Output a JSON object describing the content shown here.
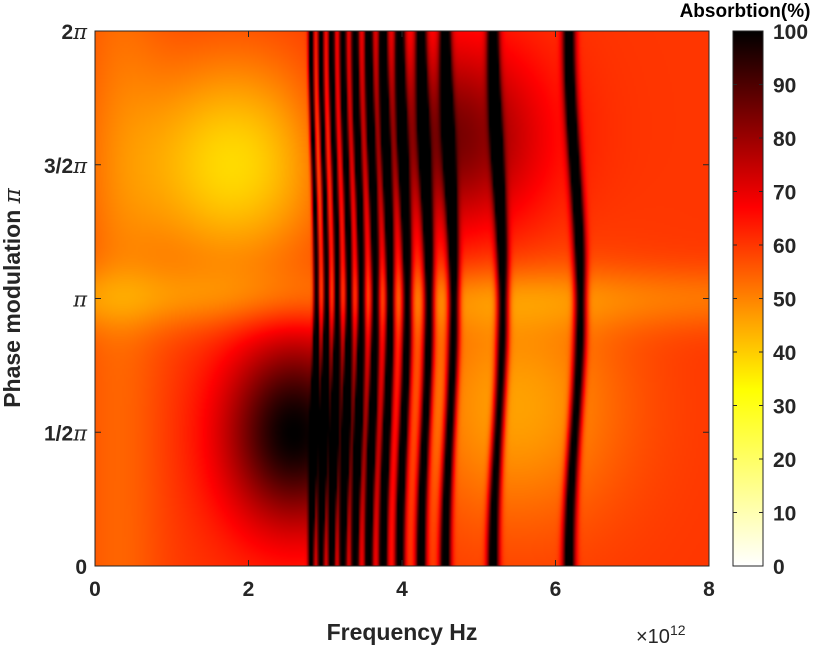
{
  "chart_data": {
    "type": "heatmap",
    "xlabel": "Frequency Hz",
    "ylabel_prefix": "Phase modulation",
    "ylabel_symbol": "π",
    "x_exponent_prefix": "×10",
    "x_exponent_power": "12",
    "xlim": [
      0,
      8
    ],
    "x_ticks": [
      0,
      2,
      4,
      6,
      8
    ],
    "x_tick_labels": [
      "0",
      "2",
      "4",
      "6",
      "8"
    ],
    "ylim_over_pi": [
      0,
      2
    ],
    "y_ticks_over_pi": [
      0,
      0.5,
      1,
      1.5,
      2
    ],
    "y_tick_labels": [
      {
        "num": "0",
        "sym": ""
      },
      {
        "num": "1/2",
        "sym": "π"
      },
      {
        "num": "",
        "sym": "π"
      },
      {
        "num": "3/2",
        "sym": "π"
      },
      {
        "num": "2",
        "sym": "π"
      }
    ],
    "colorbar": {
      "title": "Absorbtion(%)",
      "range": [
        0,
        100
      ],
      "ticks": [
        0,
        10,
        20,
        30,
        40,
        50,
        60,
        70,
        80,
        90,
        100
      ],
      "tick_labels": [
        "0",
        "10",
        "20",
        "30",
        "40",
        "50",
        "60",
        "70",
        "80",
        "90",
        "100"
      ],
      "colormap": "hot (reversed): white at 0, yellow ~30, orange ~45, red ~70, black at 100"
    },
    "dark_absorption_bands_x": [
      2.85,
      2.98,
      3.12,
      3.27,
      3.43,
      3.61,
      3.8,
      4.02,
      4.3,
      4.62,
      5.25,
      6.25
    ],
    "broad_features": [
      {
        "description": "high absorption (black) region",
        "x": 2.6,
        "y_over_pi": 0.5
      },
      {
        "description": "low absorption (yellow) region",
        "x": 1.8,
        "y_over_pi": 1.5
      }
    ]
  }
}
